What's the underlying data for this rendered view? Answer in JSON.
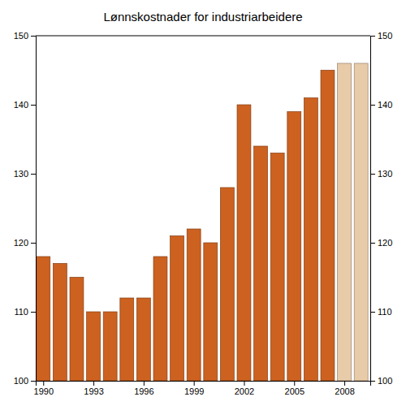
{
  "chart_data": {
    "type": "bar",
    "title": "Lønnskostnader for industriarbeidere",
    "x": [
      1990,
      1991,
      1992,
      1993,
      1994,
      1995,
      1996,
      1997,
      1998,
      1999,
      2000,
      2001,
      2002,
      2003,
      2004,
      2005,
      2006,
      2007,
      2008,
      2009
    ],
    "values": [
      118,
      117,
      115,
      110,
      110,
      112,
      112,
      118,
      121,
      122,
      120,
      128,
      140,
      134,
      133,
      139,
      141,
      145,
      146,
      146
    ],
    "colors": [
      "#cc6120",
      "#cc6120",
      "#cc6120",
      "#cc6120",
      "#cc6120",
      "#cc6120",
      "#cc6120",
      "#cc6120",
      "#cc6120",
      "#cc6120",
      "#cc6120",
      "#cc6120",
      "#cc6120",
      "#cc6120",
      "#cc6120",
      "#cc6120",
      "#cc6120",
      "#cc6120",
      "#e8cba8",
      "#e8cba8"
    ],
    "xlim": [
      1989.55,
      2009.55
    ],
    "xticks": [
      1990,
      1993,
      1996,
      1999,
      2002,
      2005,
      2008
    ],
    "ylim": [
      100,
      150
    ],
    "yticks": [
      100,
      110,
      120,
      130,
      140,
      150
    ],
    "y2lim": [
      100,
      150
    ],
    "y2ticks": [
      100,
      110,
      120,
      130,
      140,
      150
    ],
    "grid": false
  }
}
